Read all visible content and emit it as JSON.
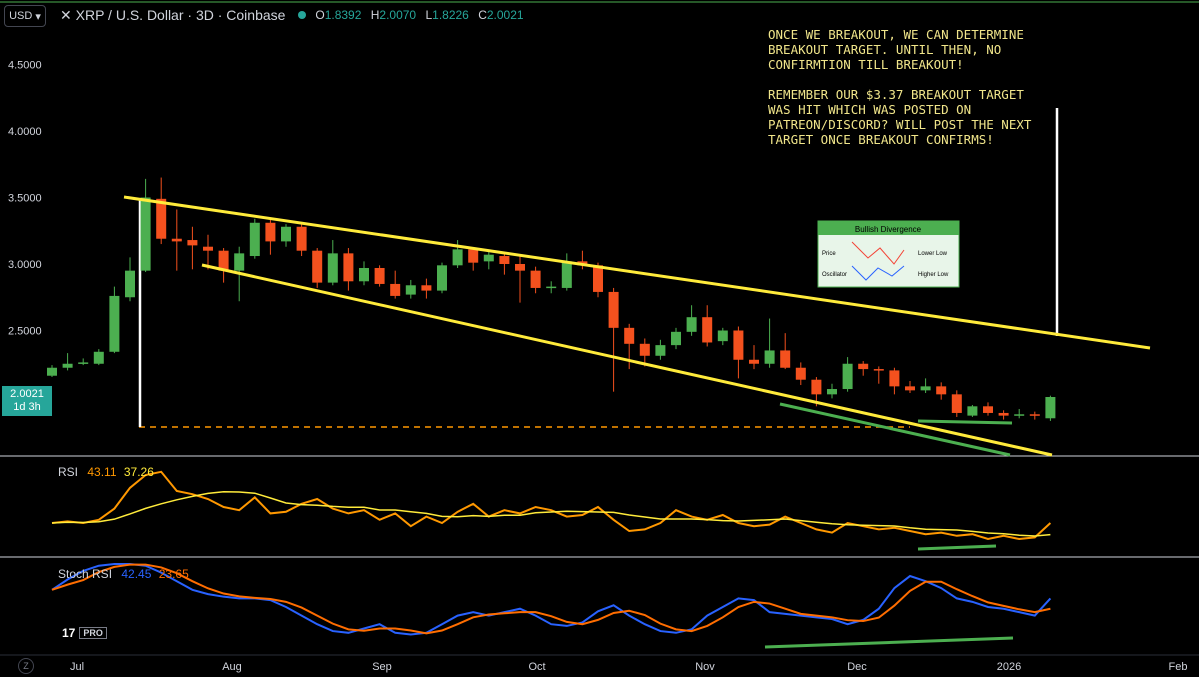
{
  "header": {
    "currency": "USD",
    "symbol": "XRP / U.S. Dollar · 3D · Coinbase",
    "ohlc": {
      "o_label": "O",
      "o": "1.8392",
      "h_label": "H",
      "h": "2.0070",
      "l_label": "L",
      "l": "1.8226",
      "c_label": "C",
      "c": "2.0021"
    }
  },
  "price_tag": {
    "value": "2.0021",
    "countdown": "1d 3h"
  },
  "note": "ONCE WE BREAKOUT, WE CAN DETERMINE\nBREAKOUT TARGET. UNTIL THEN, NO\nCONFIRMTION TILL BREAKOUT!\n\nREMEMBER OUR $3.37 BREAKOUT TARGET\nWAS HIT WHICH WAS POSTED ON\nPATREON/DISCORD? WILL POST THE NEXT\nTARGET ONCE BREAKOUT CONFIRMS!",
  "rsi": {
    "name": "RSI",
    "v1": "43.11",
    "v2": "37.26"
  },
  "stoch": {
    "name": "Stoch RSI",
    "v1": "42.45",
    "v2": "23.65"
  },
  "logo": {
    "text": "17",
    "pro": "PRO"
  },
  "z_label": "Z",
  "colors": {
    "up": "#4caf50",
    "down": "#f4511e",
    "trend": "#ffeb3b",
    "rsi": "#ff9800",
    "rsi_ma": "#ffeb3b",
    "stoch_k": "#2962ff",
    "stoch_d": "#ff6d00",
    "green_line": "#4caf50"
  },
  "divergence_box": {
    "title": "Bullish Divergence",
    "price": "Price",
    "osc": "Oscillator",
    "lower_low": "Lower Low",
    "higher_low": "Higher Low"
  },
  "chart_data": {
    "type": "candlestick",
    "y_ticks": [
      "4.5000",
      "4.0000",
      "3.5000",
      "3.0000",
      "2.5000"
    ],
    "x_ticks": [
      "Jul",
      "Aug",
      "Sep",
      "Oct",
      "Nov",
      "Dec",
      "2026",
      "Feb"
    ],
    "ylim": [
      1.3,
      4.8
    ],
    "candles": [
      [
        2.16,
        2.22,
        2.15,
        2.24
      ],
      [
        2.22,
        2.25,
        2.2,
        2.33
      ],
      [
        2.25,
        2.26,
        2.24,
        2.29
      ],
      [
        2.25,
        2.34,
        2.24,
        2.36
      ],
      [
        2.34,
        2.76,
        2.33,
        2.83
      ],
      [
        2.75,
        2.95,
        2.72,
        3.05
      ],
      [
        2.95,
        3.5,
        2.94,
        3.64
      ],
      [
        3.49,
        3.19,
        3.15,
        3.65
      ],
      [
        3.19,
        3.17,
        2.95,
        3.41
      ],
      [
        3.18,
        3.14,
        2.96,
        3.28
      ],
      [
        3.13,
        3.1,
        2.96,
        3.22
      ],
      [
        3.1,
        2.95,
        2.86,
        3.12
      ],
      [
        2.95,
        3.08,
        2.72,
        3.13
      ],
      [
        3.06,
        3.31,
        3.04,
        3.34
      ],
      [
        3.31,
        3.17,
        3.07,
        3.35
      ],
      [
        3.17,
        3.28,
        3.13,
        3.3
      ],
      [
        3.28,
        3.1,
        3.06,
        3.3
      ],
      [
        3.1,
        2.86,
        2.82,
        3.12
      ],
      [
        2.86,
        3.08,
        2.84,
        3.18
      ],
      [
        3.08,
        2.87,
        2.8,
        3.12
      ],
      [
        2.87,
        2.97,
        2.84,
        3.02
      ],
      [
        2.97,
        2.85,
        2.83,
        2.99
      ],
      [
        2.85,
        2.76,
        2.74,
        2.95
      ],
      [
        2.77,
        2.84,
        2.74,
        2.88
      ],
      [
        2.84,
        2.8,
        2.74,
        2.89
      ],
      [
        2.8,
        2.99,
        2.78,
        3.01
      ],
      [
        2.99,
        3.11,
        2.97,
        3.18
      ],
      [
        3.11,
        3.01,
        2.95,
        3.12
      ],
      [
        3.02,
        3.07,
        2.96,
        3.09
      ],
      [
        3.06,
        3.0,
        2.92,
        3.08
      ],
      [
        3.0,
        2.95,
        2.71,
        3.07
      ],
      [
        2.95,
        2.82,
        2.78,
        2.98
      ],
      [
        2.82,
        2.83,
        2.78,
        2.87
      ],
      [
        2.82,
        3.02,
        2.8,
        3.08
      ],
      [
        3.02,
        2.99,
        2.96,
        3.1
      ],
      [
        2.99,
        2.79,
        2.75,
        3.01
      ],
      [
        2.79,
        2.52,
        2.04,
        2.82
      ],
      [
        2.52,
        2.4,
        2.21,
        2.55
      ],
      [
        2.4,
        2.31,
        2.23,
        2.44
      ],
      [
        2.31,
        2.39,
        2.28,
        2.43
      ],
      [
        2.39,
        2.49,
        2.36,
        2.52
      ],
      [
        2.49,
        2.6,
        2.46,
        2.69
      ],
      [
        2.6,
        2.41,
        2.38,
        2.69
      ],
      [
        2.42,
        2.5,
        2.39,
        2.52
      ],
      [
        2.5,
        2.28,
        2.14,
        2.53
      ],
      [
        2.28,
        2.25,
        2.21,
        2.39
      ],
      [
        2.25,
        2.35,
        2.22,
        2.59
      ],
      [
        2.35,
        2.22,
        2.21,
        2.48
      ],
      [
        2.22,
        2.13,
        2.09,
        2.26
      ],
      [
        2.13,
        2.02,
        1.93,
        2.15
      ],
      [
        2.02,
        2.06,
        1.99,
        2.1
      ],
      [
        2.06,
        2.25,
        2.04,
        2.3
      ],
      [
        2.25,
        2.21,
        2.16,
        2.27
      ],
      [
        2.21,
        2.2,
        2.1,
        2.23
      ],
      [
        2.2,
        2.08,
        2.02,
        2.22
      ],
      [
        2.08,
        2.05,
        2.03,
        2.12
      ],
      [
        2.05,
        2.08,
        2.03,
        2.14
      ],
      [
        2.08,
        2.02,
        1.98,
        2.11
      ],
      [
        2.02,
        1.88,
        1.85,
        2.05
      ],
      [
        1.86,
        1.93,
        1.85,
        1.94
      ],
      [
        1.93,
        1.88,
        1.86,
        1.96
      ],
      [
        1.88,
        1.86,
        1.83,
        1.9
      ],
      [
        1.86,
        1.87,
        1.84,
        1.91
      ],
      [
        1.87,
        1.86,
        1.83,
        1.89
      ],
      [
        1.84,
        2.0,
        1.82,
        2.01
      ]
    ]
  }
}
